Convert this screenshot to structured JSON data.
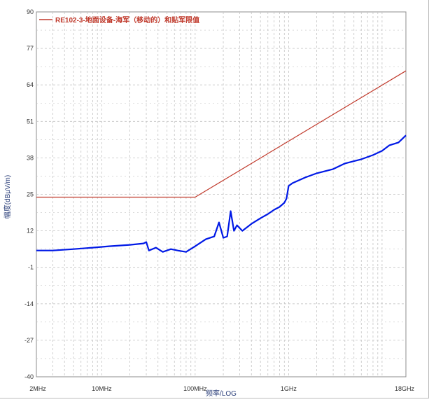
{
  "chart_data": {
    "type": "line",
    "xscale": "log",
    "xlim": [
      "2MHz",
      "18GHz"
    ],
    "ylim": [
      -40,
      90
    ],
    "grid": true,
    "xlabel": "频率/LOG",
    "ylabel": "幅度(dBµV/m)",
    "y_ticks": [
      90,
      77,
      64,
      51,
      38,
      25,
      12,
      -1,
      -14,
      -27,
      -40
    ],
    "x_tick_labels": [
      {
        "label": "2MHz",
        "freq_mhz": 2
      },
      {
        "label": "10MHz",
        "freq_mhz": 10
      },
      {
        "label": "100MHz",
        "freq_mhz": 100
      },
      {
        "label": "1GHz",
        "freq_mhz": 1000
      },
      {
        "label": "18GHz",
        "freq_mhz": 18000
      }
    ],
    "legend": {
      "placement": "top-left"
    },
    "colors": {
      "limit": "#c0392b",
      "measurement": "#0019e6",
      "grid": "#c4c4c4"
    },
    "series": [
      {
        "name": "RE102-3-地面设备-海军（移动的）和贴军限值",
        "color": "#c0392b",
        "x_mhz": [
          2,
          100,
          18000
        ],
        "y": [
          24,
          24,
          69
        ]
      },
      {
        "color": "#0019e6",
        "x_mhz": [
          2,
          3,
          5,
          8,
          12,
          20,
          28,
          30,
          32,
          38,
          45,
          55,
          65,
          80,
          100,
          130,
          160,
          180,
          200,
          220,
          240,
          260,
          280,
          320,
          400,
          500,
          600,
          700,
          800,
          900,
          950,
          1000,
          1100,
          1500,
          2000,
          3000,
          4000,
          6000,
          8000,
          10000,
          12000,
          15000,
          18000
        ],
        "y": [
          5,
          5,
          5.5,
          6,
          6.5,
          7,
          7.5,
          8,
          5,
          6,
          4.5,
          5.5,
          5,
          4.5,
          6.5,
          9,
          10,
          15,
          9.5,
          10,
          19,
          12,
          14,
          12,
          14.5,
          16.5,
          18,
          19.5,
          20.5,
          22,
          23.5,
          28,
          29,
          31,
          32.5,
          34,
          36,
          37.5,
          39,
          40.5,
          42.5,
          43.5,
          46
        ]
      }
    ]
  }
}
